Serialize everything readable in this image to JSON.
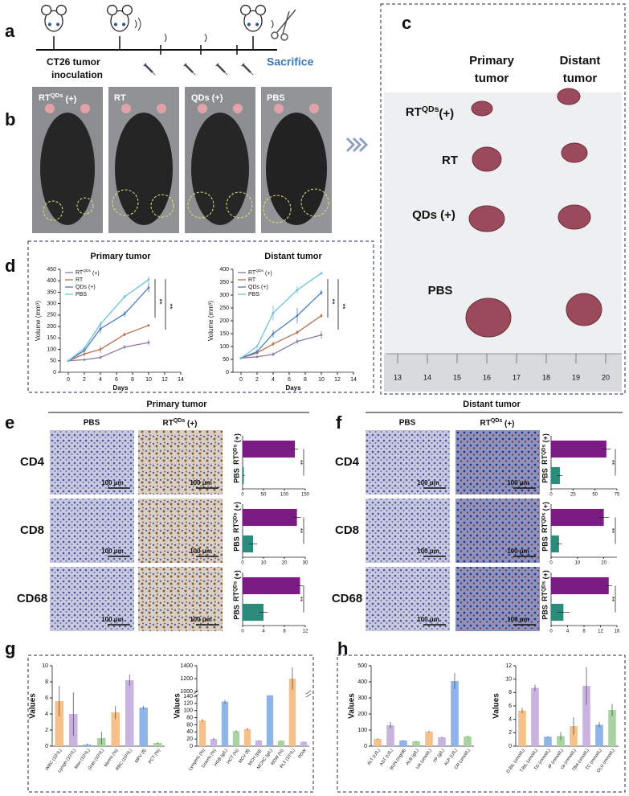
{
  "figure": {
    "panel_labels": [
      "a",
      "b",
      "c",
      "d",
      "e",
      "f",
      "g",
      "h"
    ],
    "timeline": {
      "start": [
        "CT26 tumor",
        "inoculation"
      ],
      "end": "Sacrifice"
    },
    "groups": [
      {
        "base": "RT",
        "sup": "QDs",
        "tail": " (+)"
      },
      "RT",
      "QDs (+)",
      "PBS"
    ],
    "tumor_columns": [
      [
        "Primary",
        "tumor"
      ],
      [
        "Distant",
        "tumor"
      ]
    ],
    "tumor_rows": [
      {
        "base": "RT",
        "sup": "QDs",
        "tail": "(+)"
      },
      "RT",
      "QDs (+)",
      "PBS"
    ],
    "ruler": [
      13,
      14,
      15,
      16,
      17,
      18,
      19,
      20
    ],
    "ihc": {
      "titles": [
        "Primary tumor",
        "Distant tumor"
      ],
      "columns": [
        "PBS",
        {
          "base": "RT",
          "sup": "QDs",
          "tail": " (+)"
        }
      ],
      "markers": [
        "CD4",
        "CD8",
        "CD68"
      ],
      "scale_bar": "100 μm"
    }
  },
  "chart_data": [
    {
      "type": "line",
      "title": "Primary tumor",
      "xlabel": "Days",
      "ylabel": "Volume (mm³)",
      "x": [
        0,
        2,
        4,
        7,
        10
      ],
      "xlim": [
        -1,
        14
      ],
      "xticks": [
        0,
        2,
        4,
        6,
        8,
        10,
        12,
        14
      ],
      "ylim": [
        0,
        450
      ],
      "yticks": [
        0,
        50,
        100,
        150,
        200,
        250,
        300,
        350,
        400,
        450
      ],
      "series": [
        {
          "name": {
            "base": "RT",
            "sup": "QDs",
            "tail": " (+)"
          },
          "color": "#8a7a9e",
          "values": [
            50,
            55,
            65,
            110,
            130
          ],
          "errors": [
            2,
            5,
            8,
            8,
            12
          ]
        },
        {
          "name": "RT",
          "color": "#b8704e",
          "values": [
            50,
            80,
            100,
            165,
            205
          ],
          "errors": [
            2,
            10,
            15,
            8,
            5
          ]
        },
        {
          "name": "QDs (+)",
          "color": "#4a7cc0",
          "values": [
            50,
            95,
            190,
            255,
            370
          ],
          "errors": [
            3,
            5,
            20,
            12,
            20
          ]
        },
        {
          "name": "PBS",
          "color": "#6cc4d6",
          "values": [
            50,
            105,
            210,
            330,
            405
          ],
          "errors": [
            3,
            8,
            15,
            8,
            15
          ]
        }
      ],
      "annotations": [
        "**",
        "**"
      ]
    },
    {
      "type": "line",
      "title": "Distant tumor",
      "xlabel": "Days",
      "ylabel": "Volume (mm³)",
      "x": [
        0,
        2,
        4,
        7,
        10
      ],
      "xlim": [
        -1,
        14
      ],
      "xticks": [
        0,
        2,
        4,
        6,
        8,
        10,
        12,
        14
      ],
      "ylim": [
        0,
        400
      ],
      "yticks": [
        0,
        50,
        100,
        150,
        200,
        250,
        300,
        350,
        400
      ],
      "series": [
        {
          "name": {
            "base": "RT",
            "sup": "QDs",
            "tail": " (+)"
          },
          "color": "#8a7a9e",
          "values": [
            55,
            60,
            70,
            120,
            145
          ],
          "errors": [
            3,
            5,
            8,
            10,
            15
          ]
        },
        {
          "name": "RT",
          "color": "#b8704e",
          "values": [
            55,
            75,
            110,
            155,
            220
          ],
          "errors": [
            3,
            5,
            10,
            8,
            8
          ]
        },
        {
          "name": "QDs (+)",
          "color": "#4a7cc0",
          "values": [
            55,
            80,
            150,
            220,
            310
          ],
          "errors": [
            3,
            10,
            15,
            30,
            10
          ]
        },
        {
          "name": "PBS",
          "color": "#6cc4d6",
          "values": [
            55,
            100,
            230,
            320,
            385
          ],
          "errors": [
            3,
            5,
            30,
            15,
            5
          ]
        }
      ],
      "annotations": [
        "**",
        "**"
      ]
    },
    {
      "type": "hbar",
      "categories": [
        {
          "base": "RT",
          "sup": "QDs",
          "tail": " (+)"
        },
        "PBS"
      ],
      "values": [
        125,
        3
      ],
      "errors": [
        8,
        2
      ],
      "colors": [
        "#7a1c84",
        "#2b8c7c"
      ],
      "xlim": [
        0,
        150
      ],
      "xticks": [
        0,
        50,
        100,
        150
      ],
      "annotation": "**"
    },
    {
      "type": "hbar",
      "categories": [
        {
          "base": "RT",
          "sup": "QDs",
          "tail": " (+)"
        },
        "PBS"
      ],
      "values": [
        26,
        5
      ],
      "errors": [
        2,
        2
      ],
      "colors": [
        "#7a1c84",
        "#2b8c7c"
      ],
      "xlim": [
        0,
        30
      ],
      "xticks": [
        0,
        10,
        20,
        30
      ],
      "annotation": "**"
    },
    {
      "type": "hbar",
      "categories": [
        {
          "base": "RT",
          "sup": "QDs",
          "tail": " (+)"
        },
        "PBS"
      ],
      "values": [
        11,
        4
      ],
      "errors": [
        0.6,
        0.8
      ],
      "colors": [
        "#7a1c84",
        "#2b8c7c"
      ],
      "xlim": [
        0,
        12
      ],
      "xticks": [
        0,
        4,
        8,
        12
      ],
      "annotation": "**"
    },
    {
      "type": "hbar",
      "categories": [
        {
          "base": "RT",
          "sup": "QDs",
          "tail": " (+)"
        },
        "PBS"
      ],
      "values": [
        63,
        10
      ],
      "errors": [
        5,
        3
      ],
      "colors": [
        "#7a1c84",
        "#2b8c7c"
      ],
      "xlim": [
        0,
        75
      ],
      "xticks": [
        0,
        25,
        50,
        75
      ],
      "annotation": "**"
    },
    {
      "type": "hbar",
      "categories": [
        {
          "base": "RT",
          "sup": "QDs",
          "tail": " (+)"
        },
        "PBS"
      ],
      "values": [
        20,
        3
      ],
      "errors": [
        2,
        1
      ],
      "colors": [
        "#7a1c84",
        "#2b8c7c"
      ],
      "xlim": [
        0,
        25
      ],
      "xticks": [
        0,
        10,
        20
      ],
      "annotation": "**"
    },
    {
      "type": "hbar",
      "categories": [
        {
          "base": "RT",
          "sup": "QDs",
          "tail": " (+)"
        },
        "PBS"
      ],
      "values": [
        14,
        3
      ],
      "errors": [
        0.8,
        1.5
      ],
      "colors": [
        "#7a1c84",
        "#2b8c7c"
      ],
      "xlim": [
        0,
        16
      ],
      "xticks": [
        0,
        4,
        8,
        12,
        16
      ],
      "annotation": "**"
    },
    {
      "type": "bar",
      "ylabel": "Values",
      "categories": [
        "WBC (10⁹/L)",
        "Lymph (10⁹/L)",
        "Mon (10⁹/L)",
        "Gran (10⁹/L)",
        "Mon% (%)",
        "RBC (10¹²/L)",
        "MPV (fl)",
        "PCT (%)"
      ],
      "values": [
        5.6,
        4.0,
        0.2,
        1.0,
        4.2,
        8.2,
        4.8,
        0.4
      ],
      "errors": [
        1.9,
        2.7,
        0.1,
        0.8,
        0.8,
        0.7,
        0.2,
        0.1
      ],
      "colors": [
        "#f5c08a",
        "#c9b3e0",
        "#8fb4e8",
        "#a8d4a2",
        "#f5c08a",
        "#c9b3e0",
        "#8fb4e8",
        "#a8d4a2"
      ],
      "ylim": [
        0,
        10
      ],
      "yticks": [
        0,
        2,
        4,
        6,
        8,
        10
      ]
    },
    {
      "type": "bar",
      "ylabel": "Values",
      "categories": [
        "Lymph% (%)",
        "Gran% (%)",
        "HGB (g/L)",
        "HCT (%)",
        "MCV (fl)",
        "MCH (pg)",
        "MCHC (g/L)",
        "RDW (%)",
        "PLT (10⁹/L)",
        "PDW"
      ],
      "values": [
        72,
        20,
        125,
        42,
        48,
        16,
        320,
        15,
        1200,
        12
      ],
      "errors": [
        4,
        3,
        5,
        3,
        3,
        1,
        10,
        1,
        170,
        1
      ],
      "colors": [
        "#f5c08a",
        "#c9b3e0",
        "#8fb4e8",
        "#a8d4a2",
        "#f5c08a",
        "#c9b3e0",
        "#8fb4e8",
        "#a8d4a2",
        "#f5c08a",
        "#c9b3e0"
      ],
      "ylim": [
        0,
        1400
      ],
      "ybreak": [
        140,
        1000
      ],
      "yticks": [
        0,
        20,
        40,
        60,
        80,
        100,
        120,
        140,
        1000,
        1200,
        1400
      ]
    },
    {
      "type": "bar",
      "ylabel": "Values",
      "categories": [
        "ALT (U/L)",
        "AST (U/L)",
        "BUN (mg/dl)",
        "ALB (g/L)",
        "UA (umol/L)",
        "TP (g/L)",
        "ALP (U/L)",
        "CR (umol/L)"
      ],
      "values": [
        45,
        130,
        35,
        30,
        90,
        55,
        405,
        60
      ],
      "errors": [
        4,
        20,
        4,
        3,
        6,
        4,
        50,
        5
      ],
      "colors": [
        "#f5c08a",
        "#c9b3e0",
        "#8fb4e8",
        "#a8d4a2",
        "#f5c08a",
        "#c9b3e0",
        "#8fb4e8",
        "#a8d4a2"
      ],
      "ylim": [
        0,
        500
      ],
      "yticks": [
        0,
        100,
        200,
        300,
        400,
        500
      ]
    },
    {
      "type": "bar",
      "ylabel": "Values",
      "categories": [
        "D.BIL (umol/L)",
        "T.BIL (umol/L)",
        "TG (mmol/L)",
        "IP (mmol/L)",
        "ca (mmol/L)",
        "TBA (umol/L)",
        "TC (mmol/L)",
        "GLU (mmol/L)"
      ],
      "values": [
        5.3,
        8.7,
        1.4,
        1.5,
        3.0,
        9.0,
        3.2,
        5.4
      ],
      "errors": [
        0.4,
        0.5,
        0.1,
        0.6,
        1.3,
        2.8,
        0.4,
        0.9
      ],
      "colors": [
        "#f5c08a",
        "#c9b3e0",
        "#8fb4e8",
        "#a8d4a2",
        "#f5c08a",
        "#c9b3e0",
        "#8fb4e8",
        "#a8d4a2"
      ],
      "ylim": [
        0,
        12
      ],
      "yticks": [
        0,
        2,
        4,
        6,
        8,
        10,
        12
      ]
    }
  ]
}
